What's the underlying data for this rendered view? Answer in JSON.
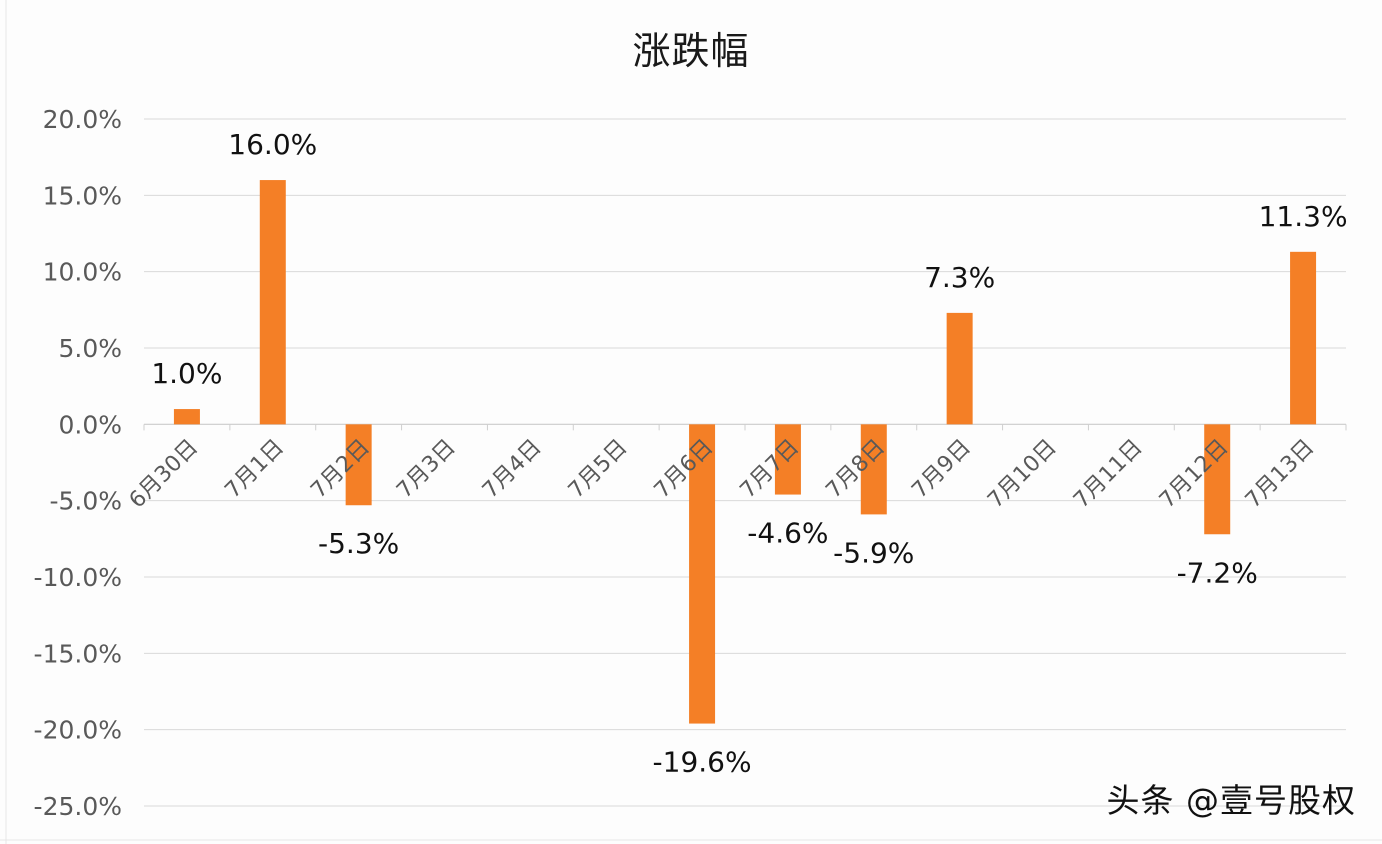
{
  "chart_data": {
    "type": "bar",
    "title": "涨跌幅",
    "categories": [
      "6月30日",
      "7月1日",
      "7月2日",
      "7月3日",
      "7月4日",
      "7月5日",
      "7月6日",
      "7月7日",
      "7月8日",
      "7月9日",
      "7月10日",
      "7月11日",
      "7月12日",
      "7月13日"
    ],
    "values": [
      1.0,
      16.0,
      -5.3,
      0,
      0,
      0,
      -19.6,
      -4.6,
      -5.9,
      7.3,
      0,
      0,
      -7.2,
      11.3
    ],
    "data_labels": [
      "1.0%",
      "16.0%",
      "-5.3%",
      "",
      "",
      "",
      "-19.6%",
      "-4.6%",
      "-5.9%",
      "7.3%",
      "",
      "",
      "-7.2%",
      "11.3%"
    ],
    "y_ticks": [
      20,
      15,
      10,
      5,
      0,
      -5,
      -10,
      -15,
      -20,
      -25
    ],
    "y_tick_labels": [
      "20.0%",
      "15.0%",
      "10.0%",
      "5.0%",
      "0.0%",
      "-5.0%",
      "-10.0%",
      "-15.0%",
      "-20.0%",
      "-25.0%"
    ],
    "ylim": [
      -25,
      20
    ],
    "xlabel": "",
    "ylabel": "",
    "grid": true,
    "legend": "none",
    "bar_color": "#f47f26",
    "grid_color": "#d9d9d9"
  },
  "watermark": "头条 @壹号股权"
}
